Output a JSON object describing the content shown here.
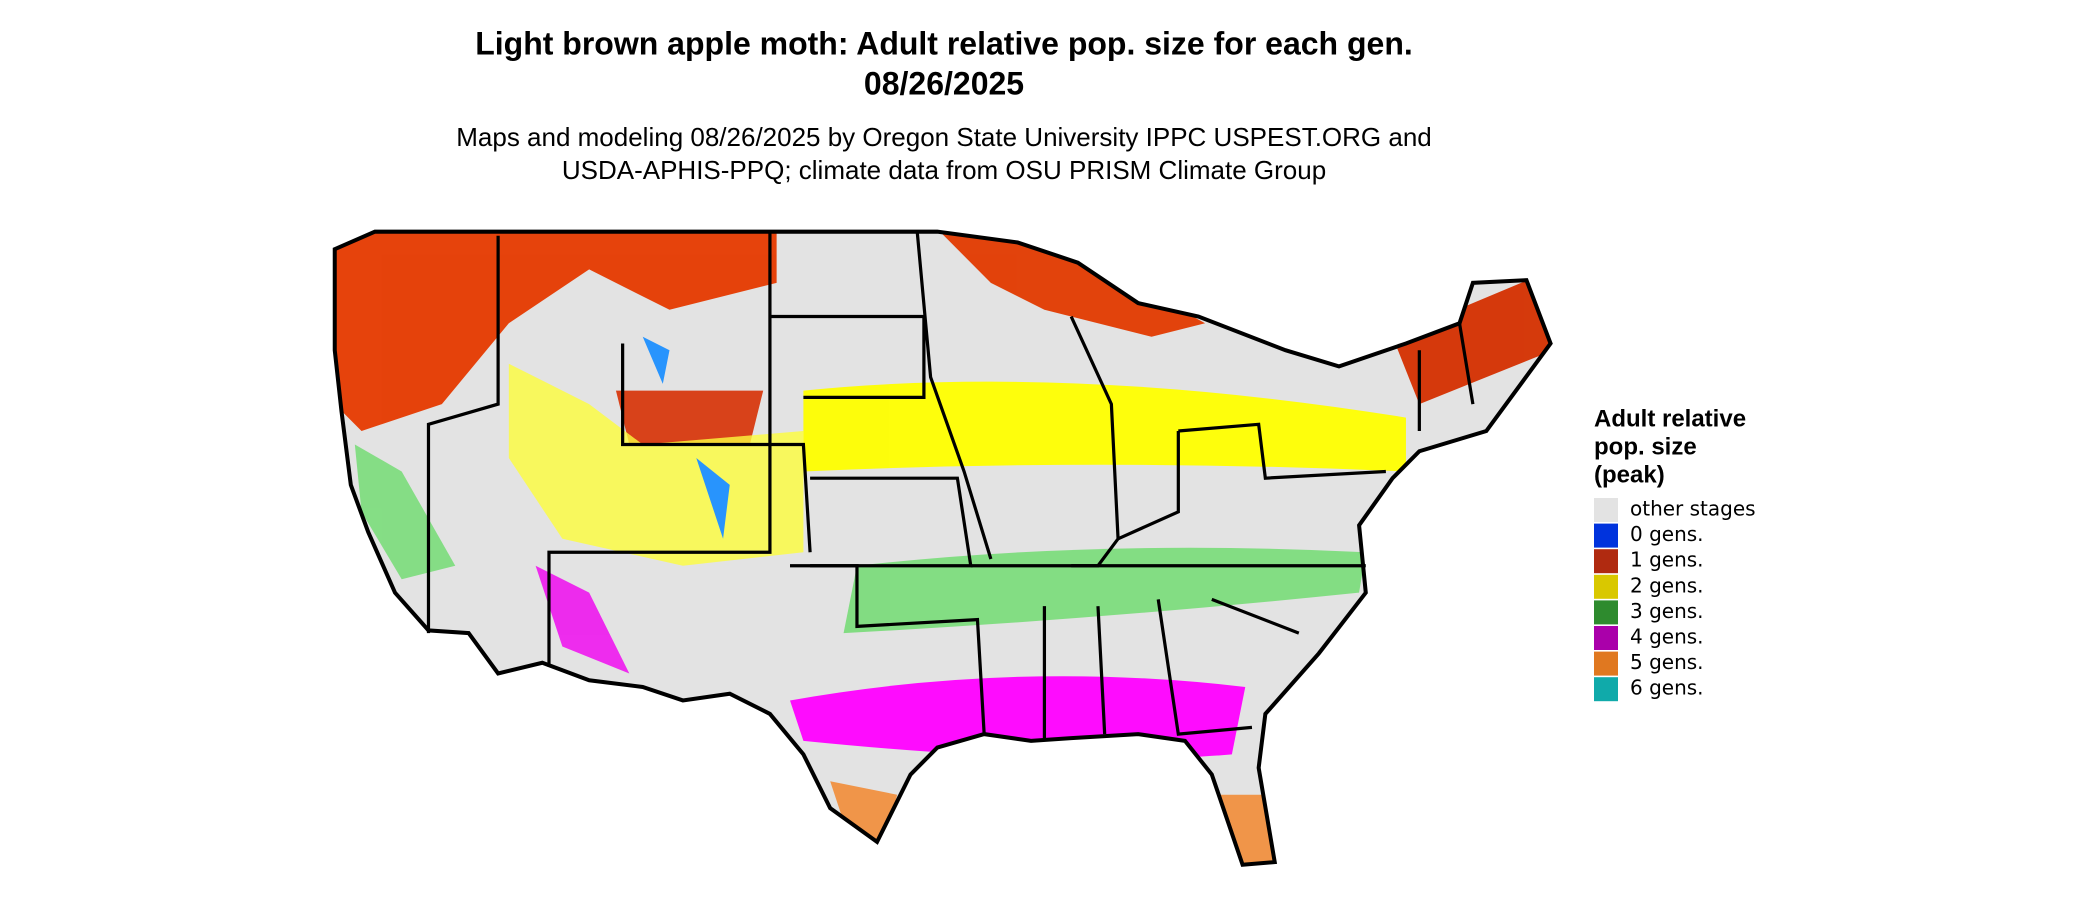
{
  "header": {
    "title": [
      "Light brown apple moth: Adult relative pop. size for each gen.",
      "08/26/2025"
    ],
    "subtitle": [
      "Maps and modeling 08/26/2025 by Oregon State University IPPC USPEST.ORG and",
      "USDA-APHIS-PPQ; climate data from OSU PRISM Climate Group"
    ]
  },
  "legend": {
    "title": [
      "Adult relative",
      "pop. size",
      "(peak)"
    ],
    "entries": [
      {
        "label": "other stages",
        "color": "#e3e3e3"
      },
      {
        "label": "0 gens.",
        "color": "#0033dd"
      },
      {
        "label": "1 gens.",
        "color": "#b02a10"
      },
      {
        "label": "2 gens.",
        "color": "#d9c800"
      },
      {
        "label": "3 gens.",
        "color": "#2e8b2e"
      },
      {
        "label": "4 gens.",
        "color": "#aa00aa"
      },
      {
        "label": "5 gens.",
        "color": "#e07820"
      },
      {
        "label": "6 gens.",
        "color": "#10aaaa"
      }
    ]
  }
}
